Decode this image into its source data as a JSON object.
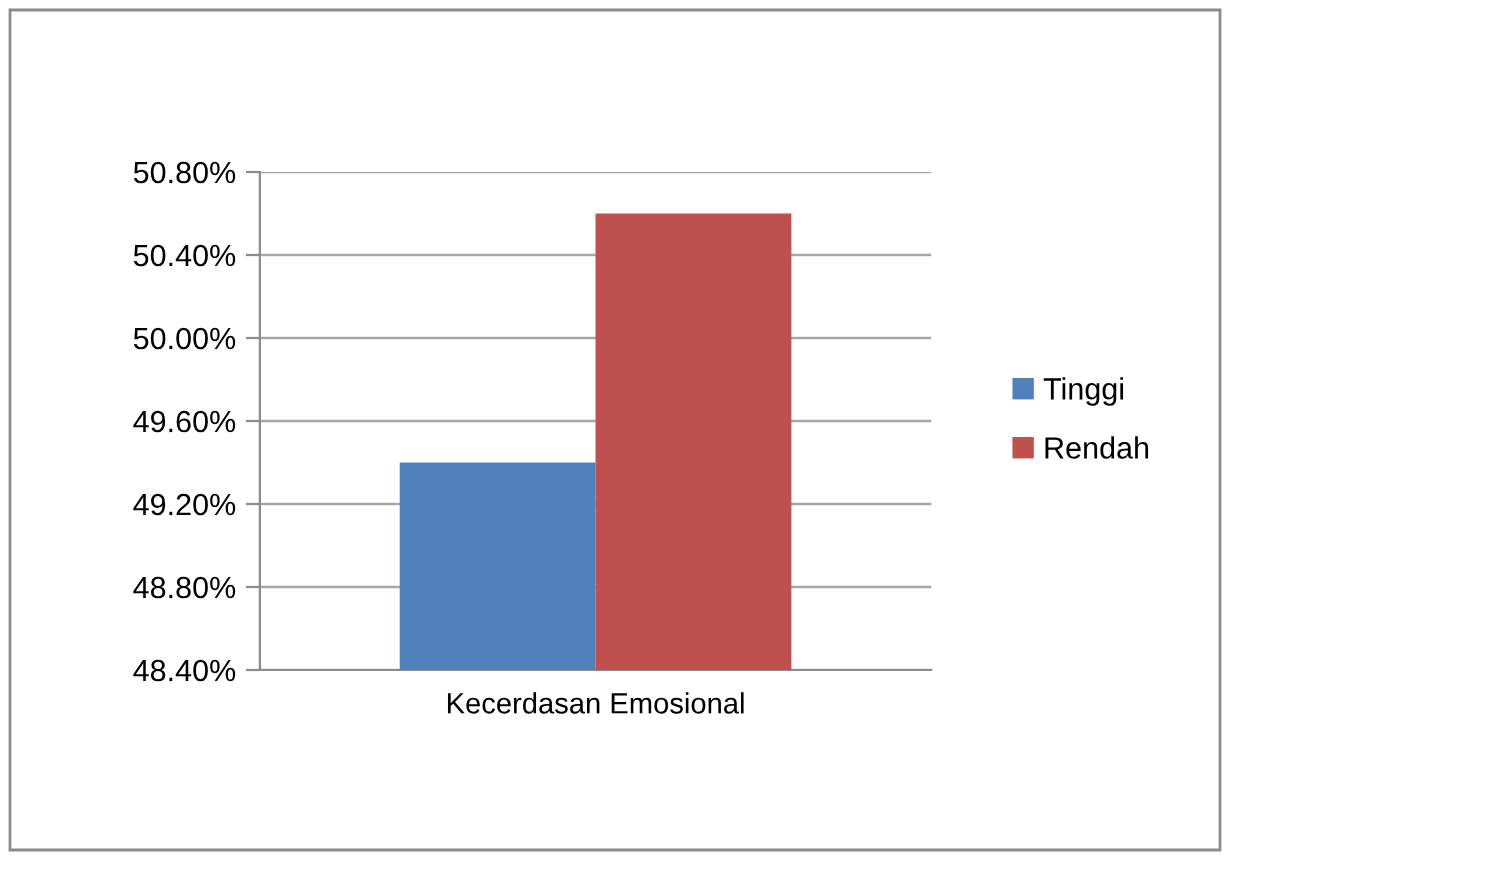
{
  "chart_data": {
    "type": "bar",
    "categories": [
      "Kecerdasan Emosional"
    ],
    "series": [
      {
        "name": "Tinggi",
        "color": "#4f81bd",
        "values": [
          49.4
        ]
      },
      {
        "name": "Rendah",
        "color": "#c0504d",
        "values": [
          50.6
        ]
      }
    ],
    "ylim": [
      48.4,
      50.8
    ],
    "yticks": [
      {
        "value": 48.4,
        "label": "48.40%"
      },
      {
        "value": 48.8,
        "label": "48.80%"
      },
      {
        "value": 49.2,
        "label": "49.20%"
      },
      {
        "value": 49.6,
        "label": "49.60%"
      },
      {
        "value": 50.0,
        "label": "50.00%"
      },
      {
        "value": 50.4,
        "label": "50.40%"
      },
      {
        "value": 50.8,
        "label": "50.80%"
      }
    ],
    "grid": "y",
    "legend": "right"
  }
}
